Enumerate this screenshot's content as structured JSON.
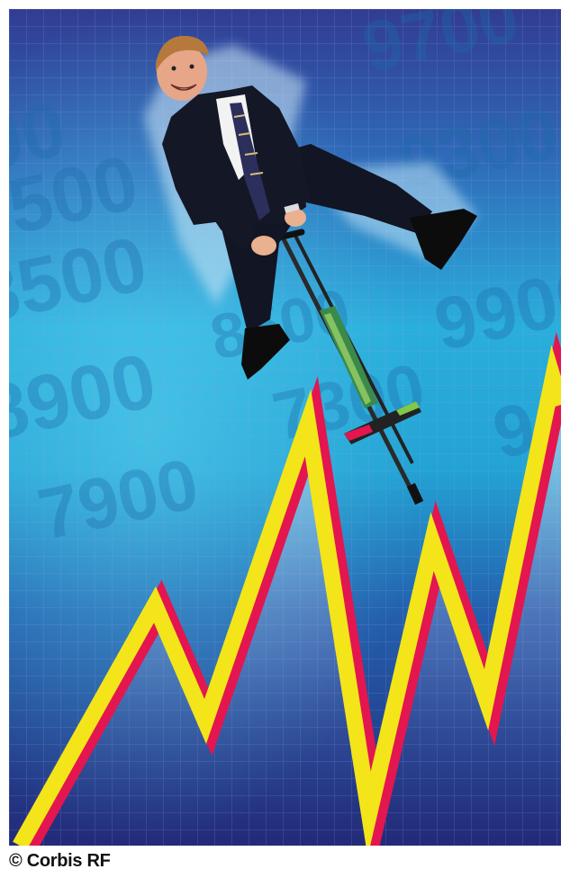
{
  "image": {
    "description_icon": "businessman-on-pogo-stick-over-stock-chart",
    "colors": {
      "sky_top": "#2f3f93",
      "sky_mid": "#25a9d8",
      "sky_bottom": "#1f4fa0",
      "deep": "#232d7a",
      "line_yellow": "#f3e51a",
      "line_red": "#e3164f"
    },
    "background_numbers": [
      "9700",
      "9300",
      "9500",
      "9900",
      "8500",
      "8900",
      "7900",
      "7300",
      "8500",
      "9900",
      "9"
    ]
  },
  "credit": "© Corbis RF"
}
